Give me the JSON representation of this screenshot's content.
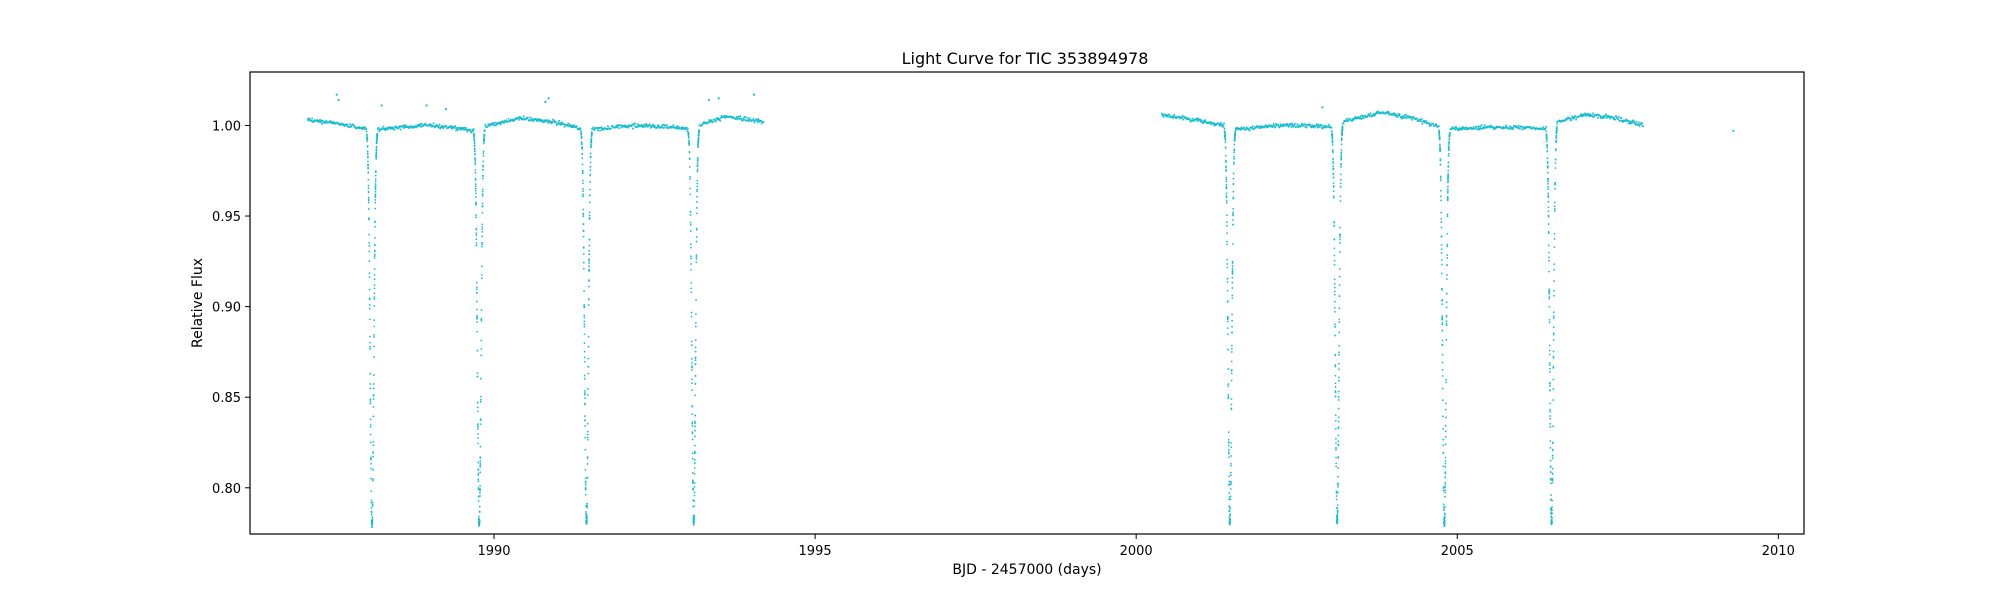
{
  "chart_data": {
    "type": "scatter",
    "title": "Light Curve for TIC 353894978",
    "xlabel": "BJD - 2457000 (days)",
    "ylabel": "Relative Flux",
    "xlim": [
      1986.2,
      2010.4
    ],
    "ylim": [
      0.7745,
      1.0295
    ],
    "xticks": [
      1990,
      1995,
      2000,
      2005,
      2010
    ],
    "xtick_labels": [
      "1990",
      "1995",
      "2000",
      "2005",
      "2010"
    ],
    "yticks": [
      0.8,
      0.85,
      0.9,
      0.95,
      1.0
    ],
    "ytick_labels": [
      "0.80",
      "0.85",
      "0.90",
      "0.95",
      "1.00"
    ],
    "grid": false,
    "legend": "none",
    "marker_color": "#17becf",
    "observing_segments": [
      {
        "start": 1987.1,
        "end": 1994.2
      },
      {
        "start": 2000.4,
        "end": 2007.9
      }
    ],
    "eclipse_minima": [
      {
        "time": 1988.1,
        "min_flux": 0.779
      },
      {
        "time": 1989.77,
        "min_flux": 0.78
      },
      {
        "time": 1991.44,
        "min_flux": 0.78
      },
      {
        "time": 1993.11,
        "min_flux": 0.781
      },
      {
        "time": 2001.46,
        "min_flux": 0.78
      },
      {
        "time": 2003.13,
        "min_flux": 0.781
      },
      {
        "time": 2004.8,
        "min_flux": 0.78
      },
      {
        "time": 2006.47,
        "min_flux": 0.78
      }
    ],
    "baseline_flux": [
      [
        1987.1,
        1.003
      ],
      [
        1987.6,
        1.001
      ],
      [
        1988.0,
        0.998
      ],
      [
        1988.3,
        0.998
      ],
      [
        1988.9,
        1.0
      ],
      [
        1989.3,
        0.999
      ],
      [
        1989.7,
        0.997
      ],
      [
        1989.9,
        1.0
      ],
      [
        1990.4,
        1.004
      ],
      [
        1990.9,
        1.002
      ],
      [
        1991.4,
        0.998
      ],
      [
        1991.6,
        0.998
      ],
      [
        1992.2,
        1.0
      ],
      [
        1992.7,
        0.999
      ],
      [
        1993.05,
        0.998
      ],
      [
        1993.2,
        1.0
      ],
      [
        1993.6,
        1.005
      ],
      [
        1994.2,
        1.002
      ],
      [
        2000.4,
        1.006
      ],
      [
        2000.9,
        1.003
      ],
      [
        2001.4,
        1.0
      ],
      [
        2001.6,
        0.998
      ],
      [
        2002.2,
        1.0
      ],
      [
        2002.7,
        1.0
      ],
      [
        2003.1,
        0.999
      ],
      [
        2003.3,
        1.003
      ],
      [
        2003.8,
        1.007
      ],
      [
        2004.3,
        1.004
      ],
      [
        2004.75,
        0.999
      ],
      [
        2004.9,
        0.998
      ],
      [
        2005.5,
        0.999
      ],
      [
        2006.0,
        0.999
      ],
      [
        2006.4,
        0.998
      ],
      [
        2006.55,
        1.002
      ],
      [
        2007.0,
        1.006
      ],
      [
        2007.5,
        1.004
      ],
      [
        2007.9,
        1.0
      ]
    ],
    "outliers": [
      [
        1987.55,
        1.017
      ],
      [
        1987.58,
        1.014
      ],
      [
        1988.25,
        1.011
      ],
      [
        1988.95,
        1.011
      ],
      [
        1989.25,
        1.009
      ],
      [
        1990.8,
        1.013
      ],
      [
        1990.85,
        1.015
      ],
      [
        1993.35,
        1.014
      ],
      [
        1993.5,
        1.015
      ],
      [
        1994.05,
        1.017
      ],
      [
        2002.9,
        1.01
      ],
      [
        2009.3,
        0.997
      ]
    ]
  }
}
